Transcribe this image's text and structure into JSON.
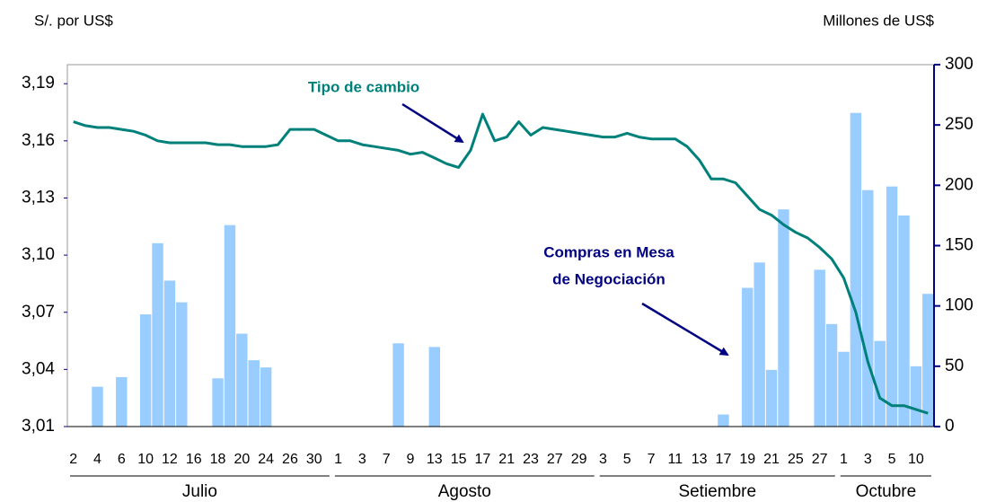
{
  "chart_data": {
    "type": "bar-line",
    "ylabel": "S/. por US$",
    "y2label": "Millones de US$",
    "annotations": [
      "Tipo de cambio",
      "Compras en Mesa",
      "de Negociación"
    ],
    "months": [
      "Julio",
      "Agosto",
      "Setiembre",
      "Octubre"
    ],
    "categories": [
      "2",
      null,
      "4",
      null,
      "6",
      null,
      "10",
      null,
      "12",
      null,
      "16",
      null,
      "18",
      null,
      "20",
      null,
      "24",
      null,
      "26",
      null,
      "30",
      null,
      "1",
      null,
      "3",
      null,
      "7",
      null,
      "9",
      null,
      "13",
      null,
      "15",
      null,
      "17",
      null,
      "21",
      null,
      "23",
      null,
      "27",
      null,
      "29",
      null,
      "3",
      null,
      "5",
      null,
      "7",
      null,
      "11",
      null,
      "13",
      null,
      "17",
      null,
      "19",
      null,
      "21",
      null,
      "25",
      null,
      "27",
      null,
      "1",
      null,
      "3",
      null,
      "5",
      null,
      "10",
      null
    ],
    "series": [
      {
        "kind": "bar",
        "axis": "y2",
        "color": "#99ccff",
        "values": [
          0,
          0,
          33,
          0,
          41,
          0,
          93,
          152,
          121,
          103,
          0,
          0,
          40,
          167,
          77,
          55,
          49,
          0,
          0,
          0,
          0,
          0,
          0,
          0,
          0,
          0,
          0,
          69,
          0,
          0,
          66,
          0,
          0,
          0,
          0,
          0,
          0,
          0,
          0,
          0,
          0,
          0,
          0,
          0,
          0,
          0,
          0,
          0,
          0,
          0,
          0,
          0,
          0,
          0,
          10,
          0,
          115,
          136,
          47,
          180,
          0,
          0,
          130,
          85,
          62,
          260,
          196,
          71,
          199,
          175,
          50,
          110
        ]
      },
      {
        "kind": "line",
        "axis": "y",
        "color": "#00807a",
        "values": [
          3.17,
          3.168,
          3.167,
          3.167,
          3.166,
          3.165,
          3.163,
          3.16,
          3.159,
          3.159,
          3.159,
          3.159,
          3.158,
          3.158,
          3.157,
          3.157,
          3.157,
          3.158,
          3.166,
          3.166,
          3.166,
          3.163,
          3.16,
          3.16,
          3.158,
          3.157,
          3.156,
          3.155,
          3.153,
          3.154,
          3.151,
          3.148,
          3.146,
          3.155,
          3.174,
          3.16,
          3.162,
          3.17,
          3.163,
          3.167,
          3.166,
          3.165,
          3.164,
          3.163,
          3.162,
          3.162,
          3.164,
          3.162,
          3.161,
          3.161,
          3.161,
          3.157,
          3.15,
          3.14,
          3.14,
          3.138,
          3.131,
          3.124,
          3.121,
          3.116,
          3.112,
          3.109,
          3.104,
          3.098,
          3.088,
          3.07,
          3.044,
          3.025,
          3.021,
          3.021,
          3.019,
          3.017
        ]
      }
    ],
    "ylim": [
      3.01,
      3.2
    ],
    "yticks": [
      {
        "value": 3.01,
        "label": "3,01"
      },
      {
        "value": 3.04,
        "label": "3,04"
      },
      {
        "value": 3.07,
        "label": "3,07"
      },
      {
        "value": 3.1,
        "label": "3,10"
      },
      {
        "value": 3.13,
        "label": "3,13"
      },
      {
        "value": 3.16,
        "label": "3,16"
      },
      {
        "value": 3.19,
        "label": "3,19"
      }
    ],
    "y2lim": [
      0,
      300
    ],
    "y2ticks": [
      0,
      50,
      100,
      150,
      200,
      250,
      300
    ]
  }
}
